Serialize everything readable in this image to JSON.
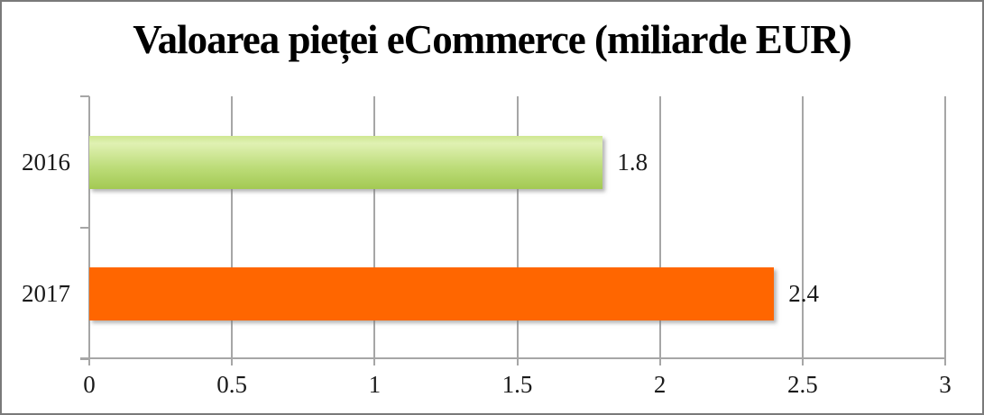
{
  "window": {
    "background": "#ffffff",
    "border_color": "#7a7a7a"
  },
  "chart_data": {
    "type": "bar",
    "orientation": "horizontal",
    "title": "Valoarea pieței eCommerce (miliarde EUR)",
    "categories": [
      "2016",
      "2017"
    ],
    "values": [
      1.8,
      2.4
    ],
    "value_labels": [
      "1.8",
      "2.4"
    ],
    "xlabel": "",
    "ylabel": "",
    "xlim": [
      0,
      3
    ],
    "xticks": [
      0,
      0.5,
      1,
      1.5,
      2,
      2.5,
      3
    ],
    "xtick_labels": [
      "0",
      "0.5",
      "1",
      "1.5",
      "2",
      "2.5",
      "3"
    ],
    "grid": true,
    "legend": false,
    "gridline_color": "#a6a6a6",
    "text_color": "#1a1a1a",
    "bar_fills": [
      [
        "#cfe791 0%",
        "#e0f1b3 14%",
        "#bcdc78 60%",
        "#a3c953 100%"
      ],
      [
        "#ff6600 0%",
        "#ff6600 100%"
      ]
    ]
  }
}
